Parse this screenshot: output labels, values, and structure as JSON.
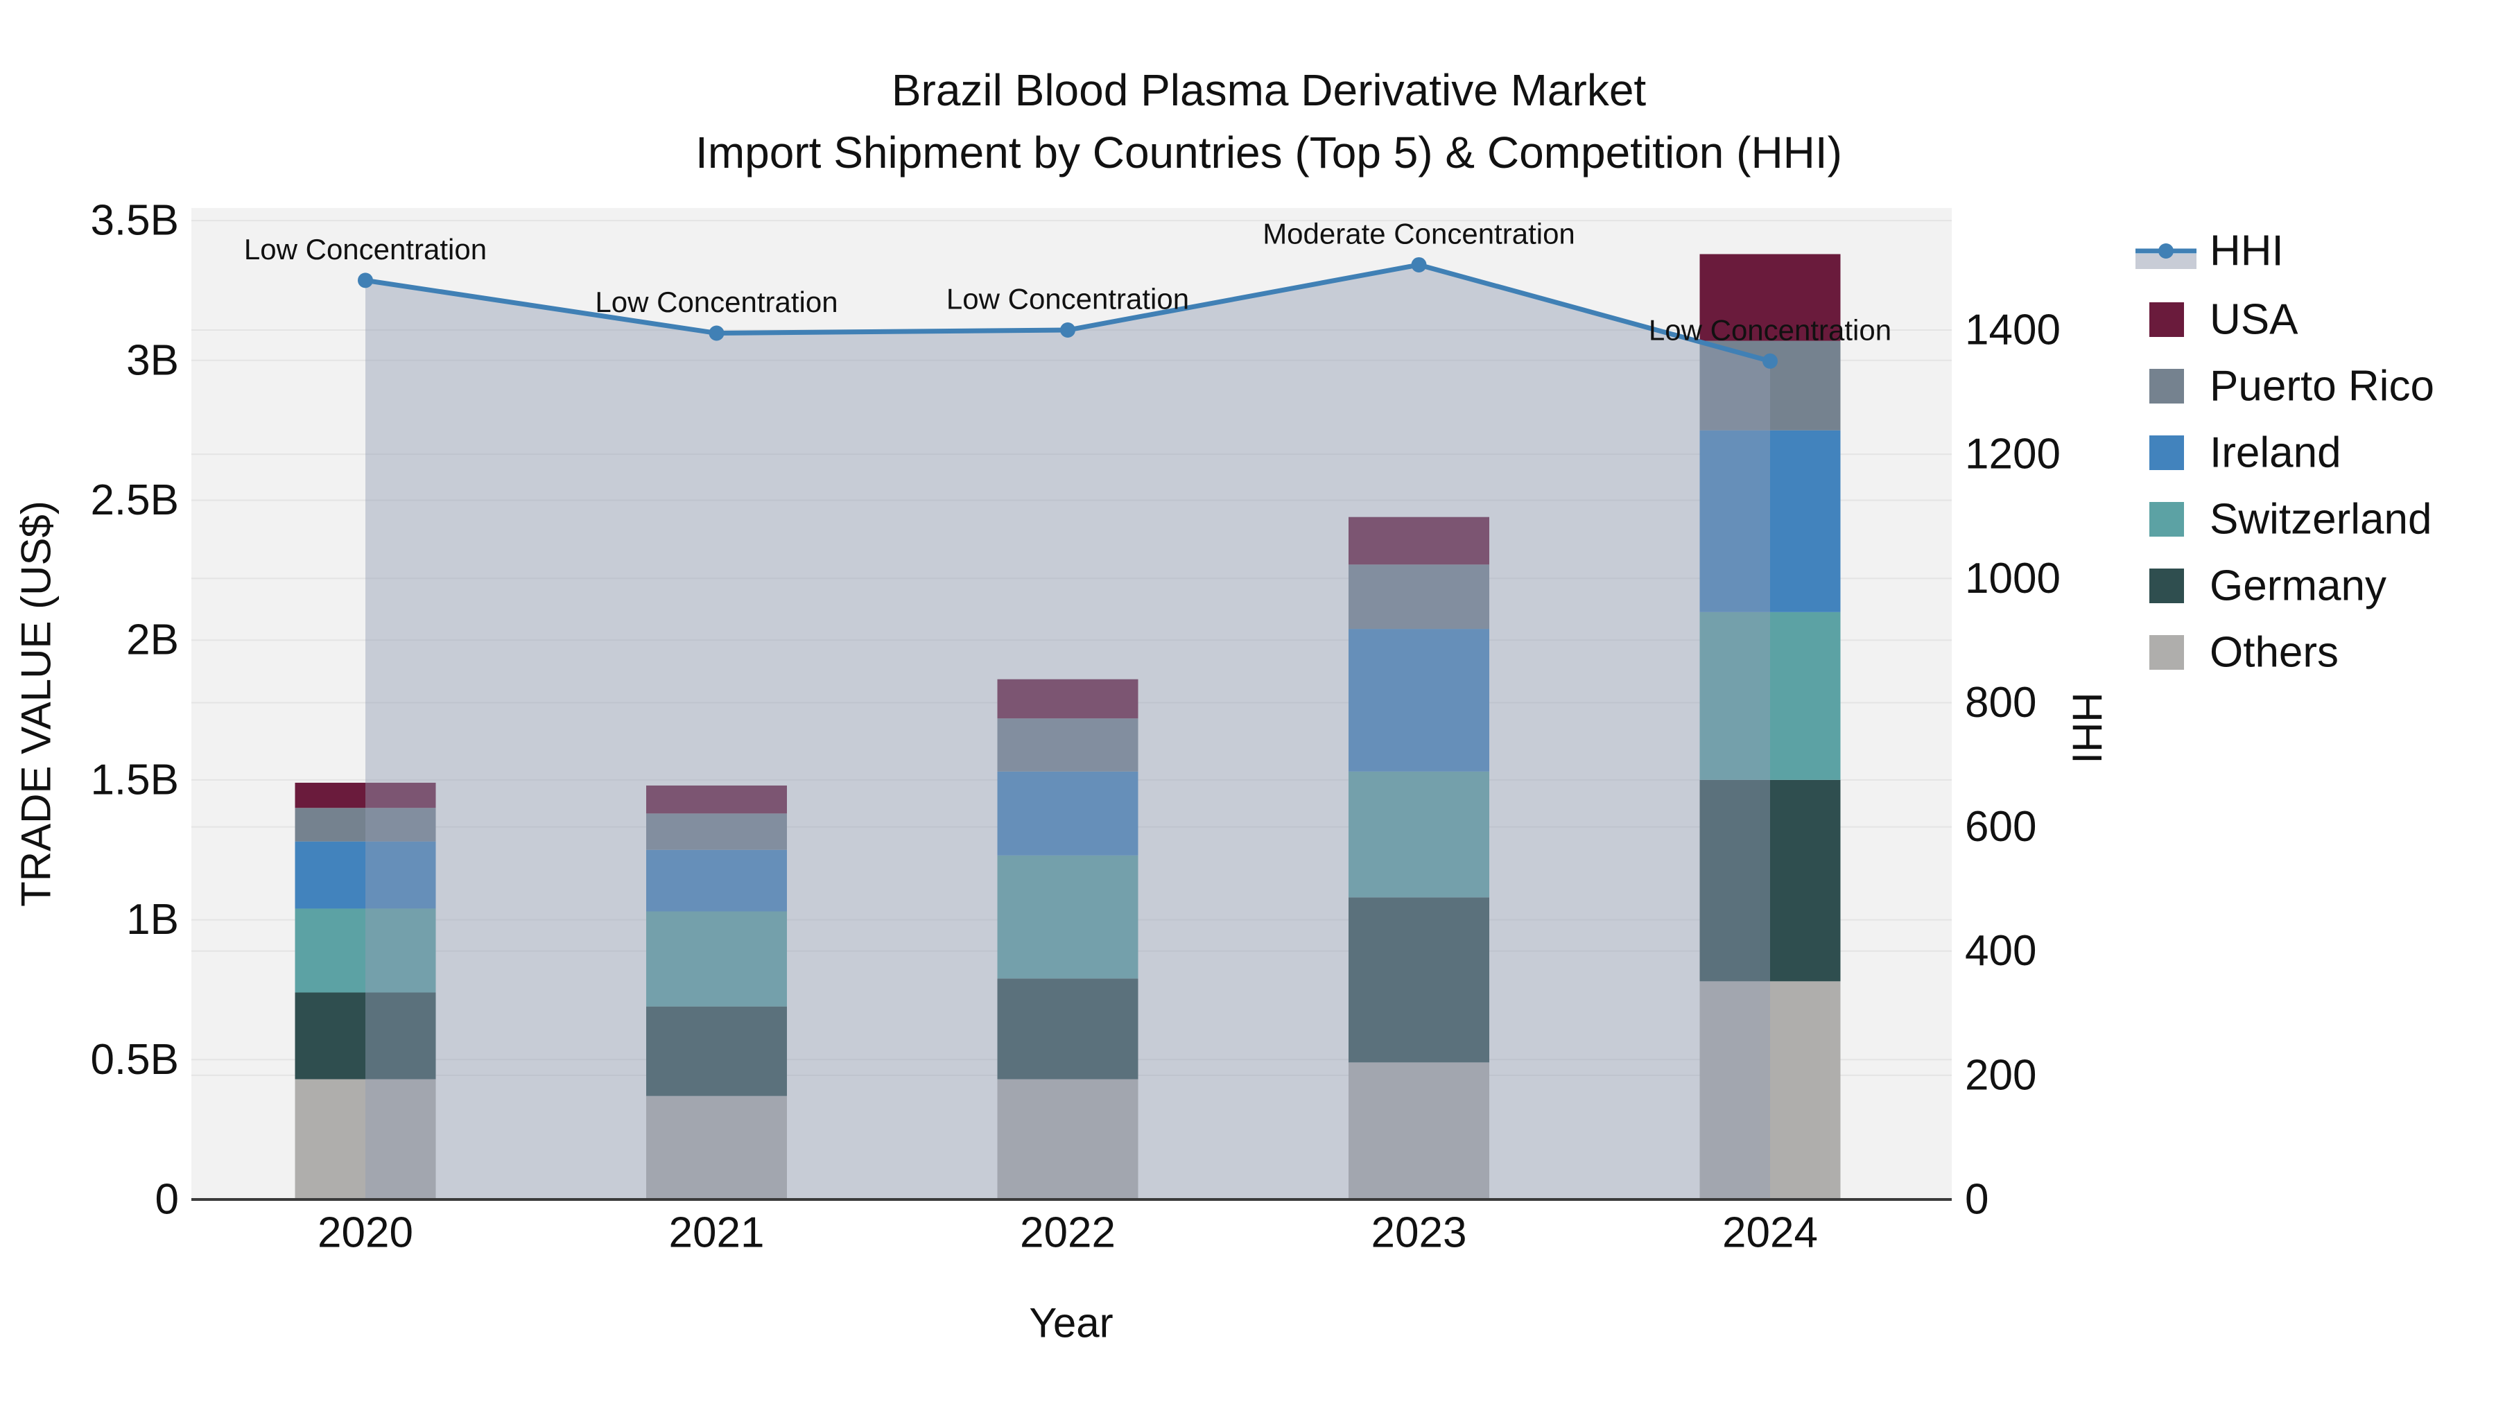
{
  "title": {
    "line1": "Brazil Blood Plasma Derivative Market",
    "line2": "Import Shipment by Countries (Top 5) & Competition (HHI)"
  },
  "axes": {
    "x": {
      "title": "Year",
      "categories": [
        "2020",
        "2021",
        "2022",
        "2023",
        "2024"
      ]
    },
    "y_left": {
      "title": "TRADE VALUE (US$)",
      "tick_labels": [
        "0",
        "0.5B",
        "1B",
        "1.5B",
        "2B",
        "2.5B",
        "3B",
        "3.5B"
      ],
      "tick_values": [
        0,
        0.5,
        1,
        1.5,
        2,
        2.5,
        3,
        3.5
      ],
      "range": [
        0,
        3.546
      ]
    },
    "y_right": {
      "title": "HHI",
      "tick_labels": [
        "0",
        "200",
        "400",
        "600",
        "800",
        "1000",
        "1200",
        "1400"
      ],
      "tick_values": [
        0,
        200,
        400,
        600,
        800,
        1000,
        1200,
        1400
      ],
      "range": [
        0,
        1596
      ]
    }
  },
  "chart_data": {
    "type": "combo_stacked_bar_line",
    "title": "Brazil Blood Plasma Derivative Market — Import Shipment by Countries (Top 5) & Competition (HHI)",
    "categories": [
      "2020",
      "2021",
      "2022",
      "2023",
      "2024"
    ],
    "bar_value_unit": "billion US$ (trade value, left axis)",
    "stack_order_bottom_to_top": [
      "Others",
      "Germany",
      "Switzerland",
      "Ireland",
      "Puerto Rico",
      "USA"
    ],
    "series": [
      {
        "name": "Others",
        "color": "#AFAEAC",
        "values": [
          0.43,
          0.37,
          0.43,
          0.49,
          0.78
        ]
      },
      {
        "name": "Germany",
        "color": "#2F4E4F",
        "values": [
          0.31,
          0.32,
          0.36,
          0.59,
          0.72
        ]
      },
      {
        "name": "Switzerland",
        "color": "#5CA2A4",
        "values": [
          0.3,
          0.34,
          0.44,
          0.45,
          0.6
        ]
      },
      {
        "name": "Ireland",
        "color": "#4283BD",
        "values": [
          0.24,
          0.22,
          0.3,
          0.51,
          0.65
        ]
      },
      {
        "name": "Puerto Rico",
        "color": "#75828F",
        "values": [
          0.12,
          0.13,
          0.19,
          0.23,
          0.32
        ]
      },
      {
        "name": "USA",
        "color": "#6A1B3C",
        "values": [
          0.09,
          0.1,
          0.14,
          0.17,
          0.31
        ]
      }
    ],
    "bar_totals": [
      1.49,
      1.48,
      1.86,
      2.44,
      3.38
    ],
    "line_series": {
      "name": "HHI",
      "axis": "right",
      "color": "#4080B5",
      "fill_color": "rgba(147,157,180,0.45)",
      "values": [
        1480,
        1395,
        1400,
        1505,
        1350
      ],
      "annotations": [
        "Low Concentration",
        "Low Concentration",
        "Low Concentration",
        "Moderate Concentration",
        "Low Concentration"
      ]
    },
    "layout_hints": {
      "plot_background": "#F2F2F2",
      "grid_color": "#E4E4E4",
      "grid_on": true,
      "legend_position": "right",
      "area_fill_under_line": true
    }
  },
  "legend": {
    "items": [
      {
        "label": "HHI",
        "type": "line",
        "color": "#4080B5",
        "fill": "#C8CCD6"
      },
      {
        "label": "USA",
        "type": "swatch",
        "color": "#6A1B3C"
      },
      {
        "label": "Puerto Rico",
        "type": "swatch",
        "color": "#75828F"
      },
      {
        "label": "Ireland",
        "type": "swatch",
        "color": "#4283BD"
      },
      {
        "label": "Switzerland",
        "type": "swatch",
        "color": "#5CA2A4"
      },
      {
        "label": "Germany",
        "type": "swatch",
        "color": "#2F4E4F"
      },
      {
        "label": "Others",
        "type": "swatch",
        "color": "#AFAEAC"
      }
    ]
  }
}
